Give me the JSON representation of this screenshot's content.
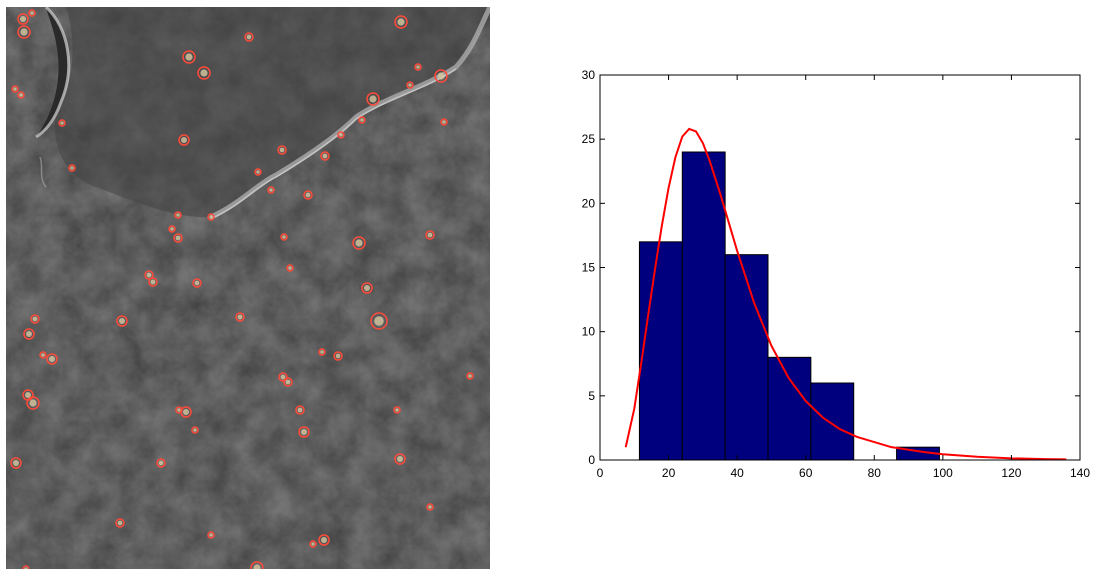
{
  "micrograph": {
    "kind": "sem-micrograph",
    "marker_color": "#ff4a3a"
  },
  "chart_data": {
    "type": "bar",
    "bin_edges": [
      11.5,
      24.0,
      36.5,
      49.0,
      61.5,
      74.0,
      86.5,
      99.0
    ],
    "counts": [
      17,
      24,
      16,
      8,
      6,
      0,
      1
    ],
    "fit_curve": {
      "x": [
        7.5,
        10,
        12,
        14,
        16,
        18,
        20,
        22,
        24,
        26,
        28,
        30,
        32,
        35,
        38,
        40,
        45,
        50,
        55,
        60,
        65,
        70,
        75,
        80,
        85,
        90,
        95,
        100,
        110,
        120,
        130,
        136
      ],
      "y": [
        1.0,
        4.0,
        7.5,
        11.2,
        14.8,
        18.2,
        21.2,
        23.6,
        25.2,
        25.8,
        25.6,
        24.7,
        23.3,
        20.8,
        18.1,
        16.3,
        12.2,
        8.9,
        6.4,
        4.6,
        3.3,
        2.4,
        1.8,
        1.4,
        1.0,
        0.8,
        0.6,
        0.45,
        0.25,
        0.13,
        0.07,
        0.05
      ]
    },
    "xlim": [
      0,
      140
    ],
    "ylim": [
      0,
      30
    ],
    "xticks": [
      0,
      20,
      40,
      60,
      80,
      100,
      120,
      140
    ],
    "yticks": [
      0,
      5,
      10,
      15,
      20,
      25,
      30
    ],
    "bar_color": "#00007f",
    "curve_color": "#ff0000",
    "grid": false,
    "title": "",
    "xlabel": "",
    "ylabel": ""
  }
}
